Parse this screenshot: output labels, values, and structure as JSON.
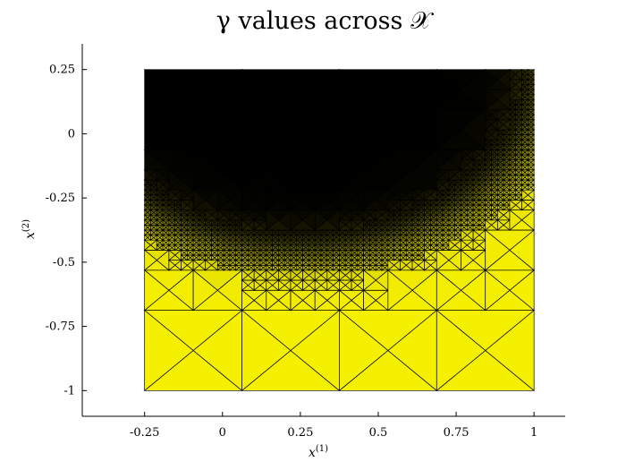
{
  "chart_data": {
    "type": "heatmap",
    "title": "γ values across 𝒳",
    "xlabel": {
      "base": "x",
      "sup": "(1)"
    },
    "ylabel": {
      "base": "x",
      "sup": "(2)"
    },
    "xlim": [
      -0.45,
      1.1
    ],
    "ylim": [
      -1.1,
      0.35
    ],
    "domain": {
      "x": [
        -0.25,
        1.0
      ],
      "y": [
        -1.0,
        0.25
      ]
    },
    "xticks": [
      {
        "value": -0.25,
        "label": "-0.25"
      },
      {
        "value": 0,
        "label": "0"
      },
      {
        "value": 0.25,
        "label": "0.25"
      },
      {
        "value": 0.5,
        "label": "0.5"
      },
      {
        "value": 0.75,
        "label": "0.75"
      },
      {
        "value": 1,
        "label": "1"
      }
    ],
    "yticks": [
      {
        "value": 0.25,
        "label": "0.25"
      },
      {
        "value": 0,
        "label": "0"
      },
      {
        "value": -0.25,
        "label": "-0.25"
      },
      {
        "value": -0.5,
        "label": "-0.5"
      },
      {
        "value": -0.75,
        "label": "-0.75"
      },
      {
        "value": -1,
        "label": "-1"
      }
    ],
    "colormap": {
      "low": "#000000",
      "high": "#f5f000"
    },
    "grid": false,
    "mesh": "adaptive triangulation, refined along the γ transition curve"
  }
}
